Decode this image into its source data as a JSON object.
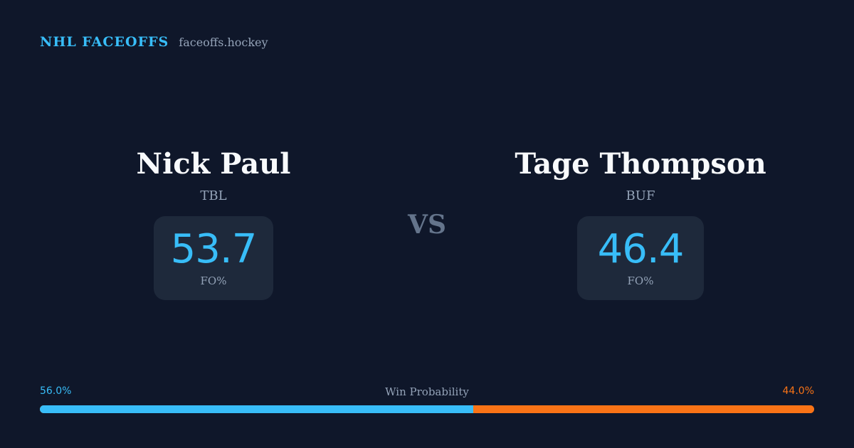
{
  "header": {
    "brand": "NHL FACEOFFS",
    "domain": "faceoffs.hockey"
  },
  "matchup": {
    "left": {
      "name": "Nick Paul",
      "team": "TBL",
      "stat_value": "53.7",
      "stat_label": "FO%"
    },
    "vs_label": "VS",
    "right": {
      "name": "Tage Thompson",
      "team": "BUF",
      "stat_value": "46.4",
      "stat_label": "FO%"
    }
  },
  "win_probability": {
    "title": "Win Probability",
    "left_label": "56.0%",
    "right_label": "44.0%",
    "left_fraction": 0.56,
    "right_fraction": 0.44
  },
  "colors": {
    "background": "#0f172a",
    "accent_left": "#38bdf8",
    "accent_right": "#f97316",
    "card": "#1e293b",
    "muted": "#94a3b8"
  }
}
